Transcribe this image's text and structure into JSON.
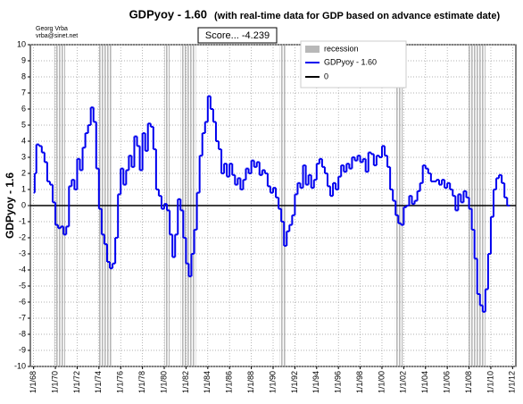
{
  "chart_data": {
    "type": "step",
    "title": "GDPyoy - 1.60",
    "subtitle": "(with real-time data for GDP based on advance estimate date)",
    "credit": [
      "Georg Vrba",
      "vrba@sinet.net"
    ],
    "annotation": "Score... -4.239",
    "y_label": "GDPyoy - 1.6",
    "xlim": [
      1967.7,
      2012.3
    ],
    "ylim": [
      -10,
      10
    ],
    "grid": true,
    "legend": "top-center",
    "yticks": [
      -10,
      -9,
      -8,
      -7,
      -6,
      -5,
      -4,
      -3,
      -2,
      -1,
      0,
      1,
      2,
      3,
      4,
      5,
      6,
      7,
      8,
      9,
      10
    ],
    "xticks": [
      {
        "value": 1968,
        "label": "1/1/68"
      },
      {
        "value": 1970,
        "label": "1/1/70"
      },
      {
        "value": 1972,
        "label": "1/1/72"
      },
      {
        "value": 1974,
        "label": "1/1/74"
      },
      {
        "value": 1976,
        "label": "1/1/76"
      },
      {
        "value": 1978,
        "label": "1/1/78"
      },
      {
        "value": 1980,
        "label": "1/1/80"
      },
      {
        "value": 1982,
        "label": "1/1/82"
      },
      {
        "value": 1984,
        "label": "1/1/84"
      },
      {
        "value": 1986,
        "label": "1/1/86"
      },
      {
        "value": 1988,
        "label": "1/1/88"
      },
      {
        "value": 1990,
        "label": "1/1/90"
      },
      {
        "value": 1992,
        "label": "1/1/92"
      },
      {
        "value": 1994,
        "label": "1/1/94"
      },
      {
        "value": 1996,
        "label": "1/1/96"
      },
      {
        "value": 1998,
        "label": "1/1/98"
      },
      {
        "value": 2000,
        "label": "1/1/00"
      },
      {
        "value": 2002,
        "label": "1/1/02"
      },
      {
        "value": 2004,
        "label": "1/1/04"
      },
      {
        "value": 2006,
        "label": "1/1/06"
      },
      {
        "value": 2008,
        "label": "1/1/08"
      },
      {
        "value": 2010,
        "label": "1/1/10"
      },
      {
        "value": 2012,
        "label": "1/1/12"
      }
    ],
    "recession": {
      "name": "recession",
      "color": "#b8b8b8",
      "ranges": [
        [
          1969.9,
          1970.9
        ],
        [
          1973.9,
          1975.2
        ],
        [
          1980.0,
          1980.5
        ],
        [
          1981.5,
          1982.9
        ],
        [
          1990.6,
          1991.2
        ],
        [
          2001.2,
          2001.9
        ],
        [
          2007.9,
          2009.5
        ]
      ]
    },
    "reference_line": {
      "name": "0",
      "value": 0,
      "color": "#000000"
    },
    "series": [
      {
        "name": "GDPyoy - 1.60",
        "color": "#0000ee",
        "x": [
          1968.0,
          1968.1,
          1968.25,
          1968.5,
          1968.75,
          1969.0,
          1969.25,
          1969.5,
          1969.75,
          1970.0,
          1970.25,
          1970.5,
          1970.75,
          1971.0,
          1971.25,
          1971.5,
          1971.75,
          1972.0,
          1972.25,
          1972.5,
          1972.75,
          1973.0,
          1973.25,
          1973.5,
          1973.75,
          1974.0,
          1974.25,
          1974.5,
          1974.75,
          1975.0,
          1975.25,
          1975.5,
          1975.75,
          1976.0,
          1976.25,
          1976.5,
          1976.75,
          1977.0,
          1977.25,
          1977.5,
          1977.75,
          1978.0,
          1978.25,
          1978.5,
          1978.75,
          1979.0,
          1979.25,
          1979.5,
          1979.75,
          1980.0,
          1980.25,
          1980.5,
          1980.75,
          1981.0,
          1981.25,
          1981.5,
          1981.75,
          1982.0,
          1982.25,
          1982.5,
          1982.75,
          1983.0,
          1983.25,
          1983.5,
          1983.75,
          1984.0,
          1984.25,
          1984.5,
          1984.75,
          1985.0,
          1985.25,
          1985.5,
          1985.75,
          1986.0,
          1986.25,
          1986.5,
          1986.75,
          1987.0,
          1987.25,
          1987.5,
          1987.75,
          1988.0,
          1988.25,
          1988.5,
          1988.75,
          1989.0,
          1989.25,
          1989.5,
          1989.75,
          1990.0,
          1990.25,
          1990.5,
          1990.75,
          1991.0,
          1991.25,
          1991.5,
          1991.75,
          1992.0,
          1992.25,
          1992.5,
          1992.75,
          1993.0,
          1993.25,
          1993.5,
          1993.75,
          1994.0,
          1994.25,
          1994.5,
          1994.75,
          1995.0,
          1995.25,
          1995.5,
          1995.75,
          1996.0,
          1996.25,
          1996.5,
          1996.75,
          1997.0,
          1997.25,
          1997.5,
          1997.75,
          1998.0,
          1998.25,
          1998.5,
          1998.75,
          1999.0,
          1999.25,
          1999.5,
          1999.75,
          2000.0,
          2000.25,
          2000.5,
          2000.75,
          2001.0,
          2001.25,
          2001.5,
          2001.75,
          2002.0,
          2002.25,
          2002.5,
          2002.75,
          2003.0,
          2003.25,
          2003.5,
          2003.75,
          2004.0,
          2004.25,
          2004.5,
          2004.75,
          2005.0,
          2005.25,
          2005.5,
          2005.75,
          2006.0,
          2006.25,
          2006.5,
          2006.75,
          2007.0,
          2007.25,
          2007.5,
          2007.75,
          2008.0,
          2008.25,
          2008.5,
          2008.75,
          2009.0,
          2009.25,
          2009.5,
          2009.75,
          2010.0,
          2010.25,
          2010.5,
          2010.75,
          2011.0,
          2011.25,
          2011.5
        ],
        "values": [
          0.8,
          2.0,
          3.8,
          3.7,
          3.3,
          2.7,
          1.5,
          1.3,
          0.2,
          -1.2,
          -1.4,
          -1.3,
          -1.8,
          -1.3,
          1.2,
          1.6,
          1.0,
          2.9,
          2.2,
          3.6,
          4.5,
          5.0,
          6.1,
          5.2,
          2.3,
          -0.2,
          -1.8,
          -2.4,
          -3.5,
          -3.9,
          -3.6,
          -2.0,
          0.7,
          2.3,
          1.3,
          2.2,
          3.1,
          2.4,
          4.3,
          3.7,
          2.2,
          4.5,
          3.4,
          5.1,
          4.9,
          3.5,
          1.0,
          0.6,
          -0.2,
          0.1,
          -0.3,
          -1.8,
          -3.2,
          -1.8,
          0.4,
          -0.3,
          -2.0,
          -3.6,
          -4.4,
          -3.0,
          -1.5,
          0.8,
          3.1,
          4.5,
          5.2,
          6.8,
          6.0,
          5.2,
          4.0,
          3.5,
          2.0,
          2.6,
          1.8,
          2.6,
          1.9,
          1.3,
          1.7,
          1.0,
          1.6,
          2.3,
          2.0,
          2.8,
          2.4,
          2.7,
          1.9,
          2.2,
          2.0,
          1.2,
          0.8,
          1.1,
          0.5,
          -0.2,
          -1.0,
          -2.5,
          -1.6,
          -1.2,
          -0.6,
          0.7,
          1.4,
          1.1,
          2.5,
          1.3,
          1.9,
          1.1,
          1.6,
          2.6,
          2.9,
          2.4,
          2.0,
          1.2,
          0.6,
          1.4,
          1.0,
          1.8,
          2.5,
          2.1,
          2.6,
          2.3,
          3.0,
          2.8,
          3.1,
          2.7,
          2.9,
          2.1,
          3.3,
          3.2,
          2.5,
          3.1,
          3.0,
          3.7,
          3.1,
          2.4,
          1.0,
          0.3,
          -0.6,
          -1.1,
          -1.2,
          -0.1,
          0.0,
          0.6,
          0.1,
          0.3,
          0.9,
          1.4,
          2.5,
          2.3,
          2.0,
          1.5,
          1.5,
          1.6,
          1.3,
          1.6,
          1.1,
          1.4,
          1.0,
          0.6,
          -0.3,
          0.7,
          0.2,
          0.9,
          0.5,
          -0.2,
          -1.5,
          -3.3,
          -5.5,
          -6.2,
          -6.6,
          -5.2,
          -3.0,
          -0.7,
          1.0,
          1.7,
          1.9,
          1.4,
          0.5,
          0.0
        ]
      }
    ]
  }
}
